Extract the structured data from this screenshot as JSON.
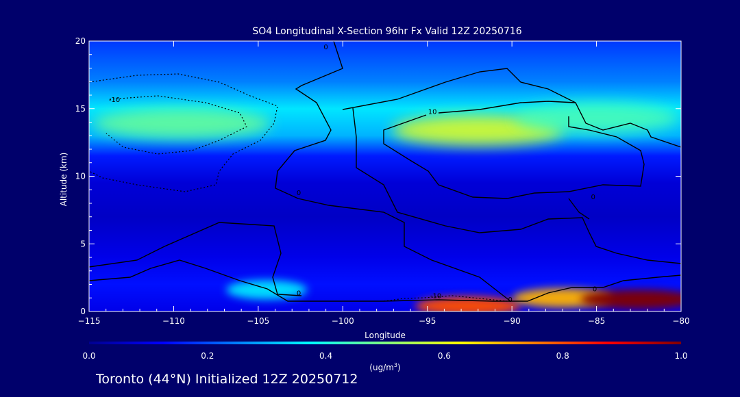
{
  "chart_data": {
    "type": "heatmap",
    "title": "SO4 Longitudinal X-Section 96hr  Fx Valid 12Z 20250716",
    "xlabel": "Longitude",
    "ylabel": "Altitude (km)",
    "xlim": [
      -115,
      -80
    ],
    "ylim": [
      0,
      20
    ],
    "xticks": [
      -115,
      -110,
      -105,
      -100,
      -95,
      -90,
      -85,
      -80
    ],
    "yticks": [
      0,
      5,
      10,
      15,
      20
    ],
    "colorbar": {
      "label_base": "(ug/m",
      "label_sup": "3",
      "label_end": ")",
      "range": [
        0.0,
        1.0
      ],
      "ticks": [
        "0.0",
        "0.2",
        "0.4",
        "0.6",
        "0.8",
        "1.0"
      ],
      "colors": [
        "#00008f",
        "#0000ff",
        "#0080ff",
        "#00ffff",
        "#80ff80",
        "#ffff00",
        "#ff8000",
        "#ff0000",
        "#800000"
      ]
    },
    "contour_labels": [
      {
        "text": "0",
        "lon": -101.0,
        "alt": 19.4
      },
      {
        "text": "-10",
        "lon": -113.5,
        "alt": 15.5
      },
      {
        "text": "10",
        "lon": -94.7,
        "alt": 14.6
      },
      {
        "text": "0",
        "lon": -102.6,
        "alt": 8.6
      },
      {
        "text": "0",
        "lon": -85.2,
        "alt": 8.3
      },
      {
        "text": "0",
        "lon": -102.6,
        "alt": 1.2
      },
      {
        "text": "-10",
        "lon": -94.5,
        "alt": 1.0
      },
      {
        "text": "0",
        "lon": -90.1,
        "alt": 0.7
      },
      {
        "text": "0",
        "lon": -85.1,
        "alt": 1.5
      }
    ],
    "features": [
      {
        "lon": [
          -115,
          -80
        ],
        "alt": [
          20,
          20
        ],
        "value": 0.18
      },
      {
        "lon": [
          -115,
          -80
        ],
        "alt": [
          17,
          17
        ],
        "value": 0.25
      },
      {
        "lon": [
          -115,
          -80
        ],
        "alt": [
          15,
          15
        ],
        "value": 0.35
      },
      {
        "lon": [
          -115,
          -80
        ],
        "alt": [
          13,
          13
        ],
        "value": 0.3
      },
      {
        "lon": [
          -115,
          -80
        ],
        "alt": [
          11.5,
          11.5
        ],
        "value": 0.15
      },
      {
        "lon": [
          -115,
          -80
        ],
        "alt": [
          9.5,
          9.5
        ],
        "value": 0.08
      },
      {
        "lon": [
          -115,
          -80
        ],
        "alt": [
          7,
          7
        ],
        "value": 0.06
      },
      {
        "lon": [
          -115,
          -80
        ],
        "alt": [
          4,
          4
        ],
        "value": 0.1
      },
      {
        "lon": [
          -115,
          -80
        ],
        "alt": [
          2,
          2
        ],
        "value": 0.14
      },
      {
        "lon": [
          -115,
          -80
        ],
        "alt": [
          0,
          0
        ],
        "value": 0.1
      }
    ],
    "blobs": [
      {
        "lon": -109.5,
        "alt": 13.9,
        "value": 0.48
      },
      {
        "lon": -92.0,
        "alt": 13.4,
        "value": 0.6
      },
      {
        "lon": -85.0,
        "alt": 14.3,
        "value": 0.45
      },
      {
        "lon": -104.5,
        "alt": 1.6,
        "value": 0.35
      },
      {
        "lon": -92.6,
        "alt": 0.4,
        "value": 0.8
      },
      {
        "lon": -87.0,
        "alt": 1.0,
        "value": 0.7
      },
      {
        "lon": -82.5,
        "alt": 0.9,
        "value": 1.0
      }
    ]
  },
  "footer": {
    "text": "Toronto (44°N) Initialized 12Z 20250712"
  }
}
